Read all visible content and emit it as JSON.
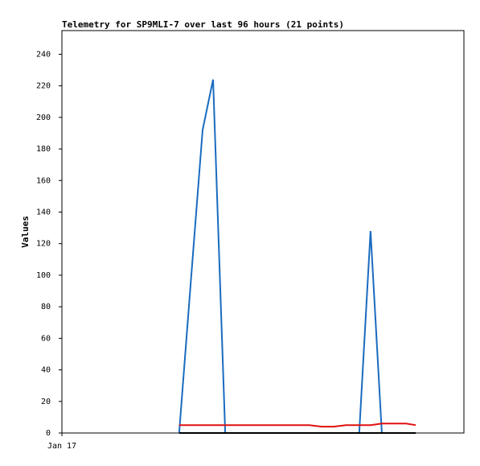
{
  "chart_data": {
    "type": "line",
    "title": "Telemetry for SP9MLI-7 over last 96 hours (21 points)",
    "y_label": "Values",
    "x": [
      28.0,
      30.7,
      33.6,
      36.1,
      39.0,
      41.9,
      44.7,
      47.6,
      50.5,
      53.4,
      56.3,
      59.1,
      62.0,
      64.9,
      67.8,
      71.0,
      73.7,
      76.4,
      79.3,
      82.2,
      84.5
    ],
    "series": [
      {
        "color": "#1a6bbf",
        "values": [
          0,
          93,
          192,
          224,
          0,
          0,
          0,
          0,
          0,
          0,
          0,
          0,
          0,
          0,
          0,
          0,
          128,
          0,
          0,
          0,
          0
        ]
      },
      {
        "color": "#e01010",
        "values": [
          5,
          5,
          5,
          5,
          5,
          5,
          5,
          5,
          5,
          5,
          5,
          5,
          4,
          4,
          5,
          5,
          5,
          6,
          6,
          6,
          5
        ]
      },
      {
        "color": "#000000",
        "values": [
          0,
          0,
          0,
          0,
          0,
          0,
          0,
          0,
          0,
          0,
          0,
          0,
          0,
          0,
          0,
          0,
          0,
          0,
          0,
          0,
          0
        ]
      }
    ],
    "xlim": [
      0,
      96
    ],
    "xticks": [
      {
        "value": 0,
        "label": "Jan 17"
      }
    ],
    "ylim": [
      0,
      255
    ],
    "yticks": [
      0,
      20,
      40,
      60,
      80,
      100,
      120,
      140,
      160,
      180,
      200,
      220,
      240
    ]
  }
}
